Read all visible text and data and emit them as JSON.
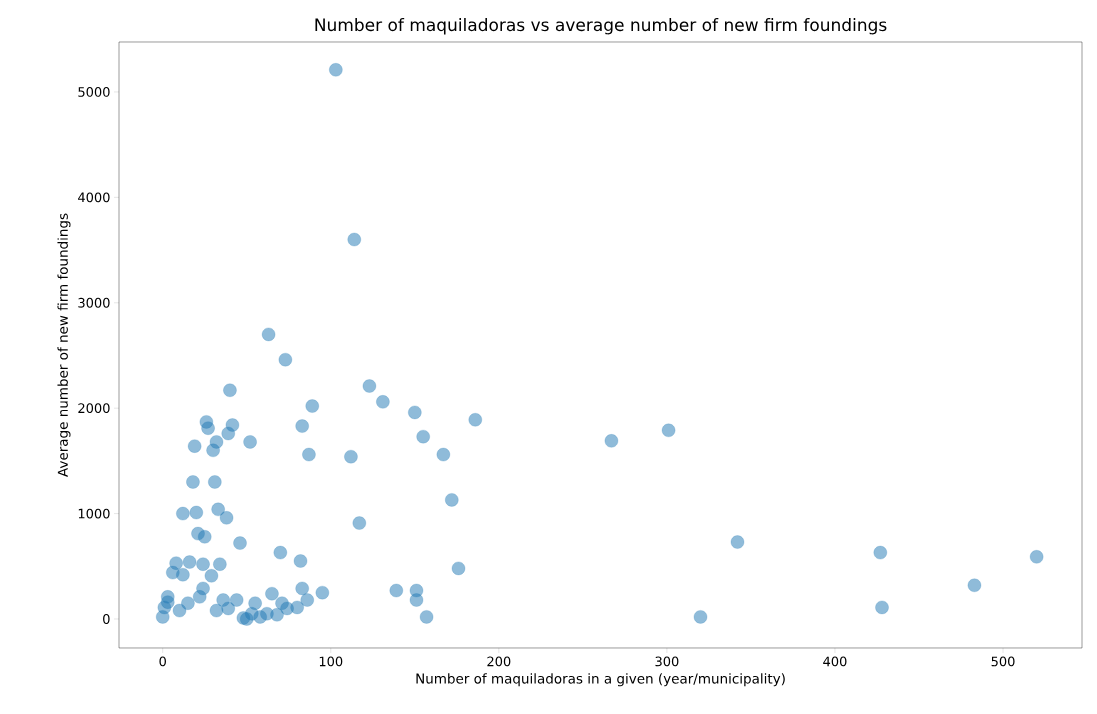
{
  "chart_data": {
    "type": "scatter",
    "title": "Number of maquiladoras vs average number of new firm foundings",
    "xlabel": "Number of maquiladoras in a given (year/municipality)",
    "ylabel": "Average number of new firm foundings",
    "x": [
      103,
      114,
      63,
      73,
      40,
      123,
      131,
      89,
      150,
      186,
      26,
      27,
      41.5,
      39,
      32,
      19,
      30,
      52,
      83,
      87,
      112,
      155,
      167,
      18,
      31,
      12,
      20,
      33,
      38,
      21,
      25,
      46,
      70,
      82,
      117,
      172,
      8,
      16,
      24,
      34,
      6,
      12,
      29,
      24,
      22,
      3,
      1,
      0,
      10,
      15,
      3,
      36,
      44,
      32,
      39,
      48,
      53,
      55,
      65,
      71,
      83,
      86,
      95,
      62,
      68,
      80,
      74,
      58,
      50,
      139,
      151,
      151,
      157,
      176,
      267,
      301,
      320,
      342,
      427,
      428,
      483,
      520
    ],
    "values": [
      5210,
      3600,
      2700,
      2460,
      2170,
      2210,
      2060,
      2020,
      1960,
      1890,
      1870,
      1810,
      1840,
      1760,
      1680,
      1640,
      1600,
      1680,
      1830,
      1560,
      1540,
      1730,
      1560,
      1300,
      1300,
      1000,
      1010,
      1040,
      960,
      810,
      780,
      720,
      630,
      550,
      910,
      1130,
      530,
      540,
      520,
      520,
      440,
      420,
      410,
      290,
      210,
      210,
      110,
      20,
      80,
      150,
      160,
      180,
      180,
      80,
      100,
      10,
      50,
      150,
      240,
      150,
      290,
      180,
      250,
      50,
      40,
      110,
      100,
      20,
      0,
      270,
      270,
      180,
      20,
      480,
      1690,
      1790,
      20,
      730,
      630,
      110,
      320,
      590
    ],
    "color": "#1f77b4",
    "marker": "circle",
    "xlim": [
      -26,
      547
    ],
    "ylim": [
      -275,
      5474
    ],
    "xticks": [
      0,
      100,
      200,
      300,
      400,
      500
    ],
    "yticks": [
      0,
      1000,
      2000,
      3000,
      4000,
      5000
    ]
  }
}
